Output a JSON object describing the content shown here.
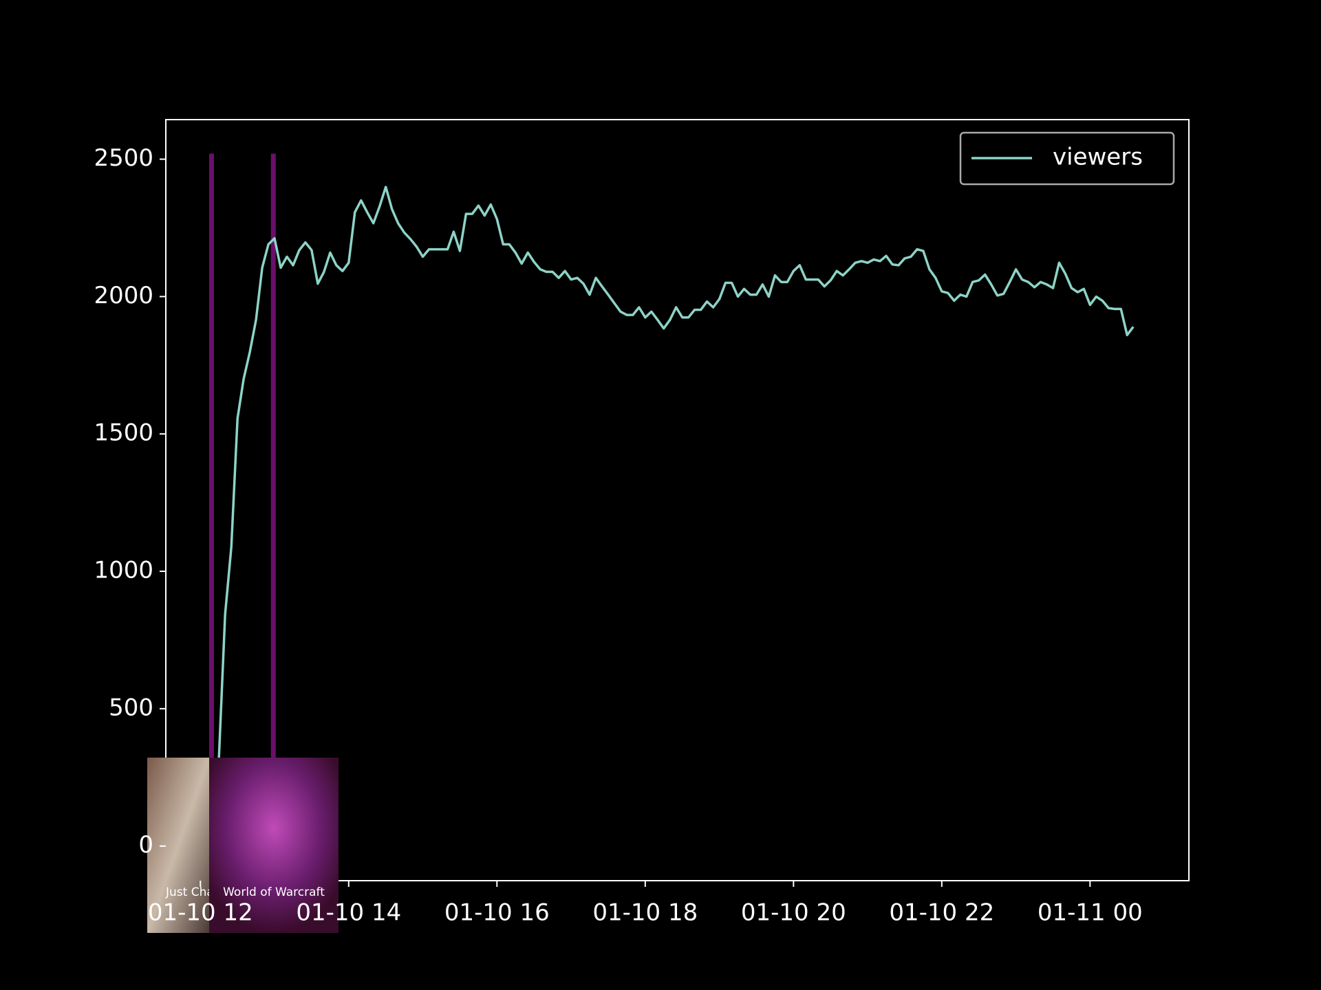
{
  "chart_data": {
    "type": "line",
    "series": [
      {
        "name": "viewers",
        "color": "#8dd3c7",
        "values": [
          322,
          843,
          1088,
          1556,
          1700,
          1798,
          1915,
          2105,
          2190,
          2212,
          2105,
          2145,
          2114,
          2169,
          2197,
          2169,
          2047,
          2090,
          2160,
          2114,
          2093,
          2123,
          2307,
          2350,
          2307,
          2267,
          2328,
          2399,
          2319,
          2267,
          2233,
          2209,
          2181,
          2145,
          2172,
          2172,
          2172,
          2172,
          2236,
          2166,
          2301,
          2301,
          2331,
          2295,
          2335,
          2282,
          2190,
          2190,
          2160,
          2120,
          2160,
          2126,
          2099,
          2090,
          2090,
          2068,
          2093,
          2062,
          2068,
          2047,
          2007,
          2068,
          2037,
          2007,
          1976,
          1945,
          1933,
          1933,
          1961,
          1924,
          1945,
          1915,
          1884,
          1915,
          1961,
          1924,
          1924,
          1952,
          1952,
          1982,
          1961,
          1991,
          2050,
          2050,
          2000,
          2028,
          2007,
          2007,
          2044,
          2000,
          2077,
          2053,
          2053,
          2093,
          2114,
          2062,
          2062,
          2062,
          2037,
          2059,
          2093,
          2077,
          2099,
          2123,
          2129,
          2123,
          2135,
          2129,
          2148,
          2117,
          2114,
          2139,
          2145,
          2172,
          2166,
          2099,
          2068,
          2019,
          2013,
          1985,
          2007,
          2000,
          2053,
          2059,
          2080,
          2044,
          2004,
          2010,
          2053,
          2099,
          2062,
          2053,
          2034,
          2053,
          2044,
          2031,
          2123,
          2083,
          2031,
          2016,
          2028,
          1970,
          2000,
          1985,
          1958,
          1955,
          1955,
          1860,
          1890
        ]
      }
    ],
    "x": [
      "01-10 12:15",
      "01-10 12:20",
      "01-10 12:25",
      "01-10 12:30",
      "01-10 12:35",
      "01-10 12:40",
      "01-10 12:45",
      "01-10 12:50",
      "01-10 12:55",
      "01-10 13:00",
      "01-10 13:05",
      "01-10 13:10",
      "01-10 13:15",
      "01-10 13:20",
      "01-10 13:25",
      "01-10 13:30",
      "01-10 13:35",
      "01-10 13:40",
      "01-10 13:45",
      "01-10 13:50",
      "01-10 13:55",
      "01-10 14:00",
      "01-10 14:05",
      "01-10 14:10",
      "01-10 14:15",
      "01-10 14:20",
      "01-10 14:25",
      "01-10 14:30",
      "01-10 14:35",
      "01-10 14:40",
      "01-10 14:45",
      "01-10 14:50",
      "01-10 14:55",
      "01-10 15:00",
      "01-10 15:05",
      "01-10 15:10",
      "01-10 15:15",
      "01-10 15:20",
      "01-10 15:25",
      "01-10 15:30",
      "01-10 15:35",
      "01-10 15:40",
      "01-10 15:45",
      "01-10 15:50",
      "01-10 15:55",
      "01-10 16:00",
      "01-10 16:05",
      "01-10 16:10",
      "01-10 16:15",
      "01-10 16:20",
      "01-10 16:25",
      "01-10 16:30",
      "01-10 16:35",
      "01-10 16:40",
      "01-10 16:45",
      "01-10 16:50",
      "01-10 16:55",
      "01-10 17:00",
      "01-10 17:05",
      "01-10 17:10",
      "01-10 17:15",
      "01-10 17:20",
      "01-10 17:25",
      "01-10 17:30",
      "01-10 17:35",
      "01-10 17:40",
      "01-10 17:45",
      "01-10 17:50",
      "01-10 17:55",
      "01-10 18:00",
      "01-10 18:05",
      "01-10 18:10",
      "01-10 18:15",
      "01-10 18:20",
      "01-10 18:25",
      "01-10 18:30",
      "01-10 18:35",
      "01-10 18:40",
      "01-10 18:45",
      "01-10 18:50",
      "01-10 18:55",
      "01-10 19:00",
      "01-10 19:05",
      "01-10 19:10",
      "01-10 19:15",
      "01-10 19:20",
      "01-10 19:25",
      "01-10 19:30",
      "01-10 19:35",
      "01-10 19:40",
      "01-10 19:45",
      "01-10 19:50",
      "01-10 19:55",
      "01-10 20:00",
      "01-10 20:05",
      "01-10 20:10",
      "01-10 20:15",
      "01-10 20:20",
      "01-10 20:25",
      "01-10 20:30",
      "01-10 20:35",
      "01-10 20:40",
      "01-10 20:45",
      "01-10 20:50",
      "01-10 20:55",
      "01-10 21:00",
      "01-10 21:05",
      "01-10 21:10",
      "01-10 21:15",
      "01-10 21:20",
      "01-10 21:25",
      "01-10 21:30",
      "01-10 21:35",
      "01-10 21:40",
      "01-10 21:45",
      "01-10 21:50",
      "01-10 21:55",
      "01-10 22:00",
      "01-10 22:05",
      "01-10 22:10",
      "01-10 22:15",
      "01-10 22:20",
      "01-10 22:25",
      "01-10 22:30",
      "01-10 22:35",
      "01-10 22:40",
      "01-10 22:45",
      "01-10 22:50",
      "01-10 22:55",
      "01-10 23:00",
      "01-10 23:05",
      "01-10 23:10",
      "01-10 23:15",
      "01-10 23:20",
      "01-10 23:25",
      "01-10 23:30",
      "01-10 23:35",
      "01-10 23:40",
      "01-10 23:45",
      "01-10 23:50",
      "01-10 23:55",
      "01-11 00:00",
      "01-11 00:05",
      "01-11 00:10",
      "01-11 00:15",
      "01-11 00:20",
      "01-11 00:25",
      "01-11 00:30",
      "01-11 00:35"
    ],
    "xlim": [
      "01-10 11:32",
      "01-11 01:20"
    ],
    "xticks": [
      {
        "value": "01-10 12:00",
        "label": "01-10 12"
      },
      {
        "value": "01-10 14:00",
        "label": "01-10 14"
      },
      {
        "value": "01-10 16:00",
        "label": "01-10 16"
      },
      {
        "value": "01-10 18:00",
        "label": "01-10 18"
      },
      {
        "value": "01-10 20:00",
        "label": "01-10 20"
      },
      {
        "value": "01-10 22:00",
        "label": "01-10 22"
      },
      {
        "value": "01-11 00:00",
        "label": "01-11 00"
      }
    ],
    "ylim": [
      -126,
      2644
    ],
    "yticks": [
      0,
      500,
      1000,
      1500,
      2000,
      2500
    ],
    "legend": "upper right",
    "vlines": {
      "x": [
        "01-10 12:09",
        "01-10 12:59"
      ],
      "ymin": 0,
      "ymax": 2520,
      "color": "#6b0f6b"
    },
    "annotations": [
      "Just Chatting",
      "World of Warcraft"
    ]
  }
}
